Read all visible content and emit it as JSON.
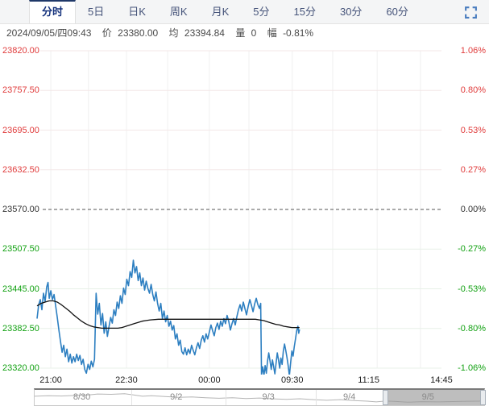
{
  "colors": {
    "up_red": "#e03c3c",
    "down_green": "#12a112",
    "neutral": "#333333",
    "price_line": "#2d7fc1",
    "avg_line": "#111111",
    "grid_red_zone": "#f3e7e7",
    "grid_green_zone": "#e8f1e8",
    "grid_vertical": "#f0f0f0",
    "baseline_dash": "#555555",
    "tab_accent": "#1f3868",
    "fullscreen_icon": "#4a7dbf",
    "nav_spark": "#b5b5b5"
  },
  "tabs": {
    "items": [
      {
        "name": "tab-minute",
        "label": "分时",
        "selected": true
      },
      {
        "name": "tab-5day",
        "label": "5日",
        "selected": false
      },
      {
        "name": "tab-daily-k",
        "label": "日K",
        "selected": false
      },
      {
        "name": "tab-weekly-k",
        "label": "周K",
        "selected": false
      },
      {
        "name": "tab-monthly-k",
        "label": "月K",
        "selected": false
      },
      {
        "name": "tab-5min",
        "label": "5分",
        "selected": false
      },
      {
        "name": "tab-15min",
        "label": "15分",
        "selected": false
      },
      {
        "name": "tab-30min",
        "label": "30分",
        "selected": false
      },
      {
        "name": "tab-60min",
        "label": "60分",
        "selected": false
      }
    ]
  },
  "info_bar": {
    "datetime": "2024/09/05/四09:43",
    "price_label": "价",
    "price": "23380.00",
    "avg_label": "均",
    "avg": "23394.84",
    "volume_label": "量",
    "volume": "0",
    "change_label": "幅",
    "change": "-0.81%"
  },
  "chart_data": {
    "type": "line",
    "ylim": [
      23320,
      23820
    ],
    "baseline": 23570,
    "y_ticks_price": [
      "23820.00",
      "23757.50",
      "23695.00",
      "23632.50",
      "23570.00",
      "23507.50",
      "23445.00",
      "23382.50",
      "23320.00"
    ],
    "y_ticks_percent": [
      "1.06%",
      "0.80%",
      "0.53%",
      "0.27%",
      "0.00%",
      "-0.27%",
      "-0.53%",
      "-0.80%",
      "-1.06%"
    ],
    "x_ticks": [
      {
        "label": "21:00",
        "f": 0.034
      },
      {
        "label": "22:30",
        "f": 0.221
      },
      {
        "label": "00:00",
        "f": 0.426
      },
      {
        "label": "09:30",
        "f": 0.631
      },
      {
        "label": "11:15",
        "f": 0.82
      },
      {
        "label": "14:45",
        "f": 1.0
      }
    ],
    "grid_v_f": [
      0.034,
      0.127,
      0.221,
      0.323,
      0.426,
      0.524,
      0.631,
      0.731,
      0.841,
      0.948
    ],
    "legend_position": "none",
    "grid": true,
    "series": [
      {
        "name": "price",
        "color_key": "price_line",
        "width": 1.6,
        "points": [
          [
            0.0,
            23398
          ],
          [
            0.004,
            23420
          ],
          [
            0.008,
            23428
          ],
          [
            0.012,
            23412
          ],
          [
            0.016,
            23438
          ],
          [
            0.02,
            23425
          ],
          [
            0.024,
            23448
          ],
          [
            0.027,
            23455
          ],
          [
            0.03,
            23430
          ],
          [
            0.034,
            23442
          ],
          [
            0.038,
            23428
          ],
          [
            0.042,
            23436
          ],
          [
            0.046,
            23418
          ],
          [
            0.05,
            23400
          ],
          [
            0.054,
            23380
          ],
          [
            0.058,
            23362
          ],
          [
            0.062,
            23345
          ],
          [
            0.066,
            23356
          ],
          [
            0.07,
            23338
          ],
          [
            0.074,
            23350
          ],
          [
            0.078,
            23330
          ],
          [
            0.082,
            23342
          ],
          [
            0.086,
            23328
          ],
          [
            0.09,
            23338
          ],
          [
            0.094,
            23330
          ],
          [
            0.098,
            23342
          ],
          [
            0.102,
            23332
          ],
          [
            0.106,
            23340
          ],
          [
            0.11,
            23326
          ],
          [
            0.114,
            23334
          ],
          [
            0.118,
            23318
          ],
          [
            0.122,
            23312
          ],
          [
            0.126,
            23326
          ],
          [
            0.13,
            23318
          ],
          [
            0.134,
            23331
          ],
          [
            0.138,
            23322
          ],
          [
            0.142,
            23334
          ],
          [
            0.146,
            23438
          ],
          [
            0.15,
            23405
          ],
          [
            0.154,
            23422
          ],
          [
            0.158,
            23388
          ],
          [
            0.162,
            23406
          ],
          [
            0.166,
            23375
          ],
          [
            0.17,
            23393
          ],
          [
            0.174,
            23370
          ],
          [
            0.178,
            23386
          ],
          [
            0.182,
            23400
          ],
          [
            0.186,
            23391
          ],
          [
            0.19,
            23412
          ],
          [
            0.194,
            23403
          ],
          [
            0.198,
            23424
          ],
          [
            0.202,
            23414
          ],
          [
            0.206,
            23434
          ],
          [
            0.21,
            23422
          ],
          [
            0.214,
            23446
          ],
          [
            0.218,
            23436
          ],
          [
            0.222,
            23460
          ],
          [
            0.226,
            23450
          ],
          [
            0.23,
            23472
          ],
          [
            0.234,
            23463
          ],
          [
            0.238,
            23490
          ],
          [
            0.242,
            23470
          ],
          [
            0.246,
            23480
          ],
          [
            0.25,
            23458
          ],
          [
            0.254,
            23470
          ],
          [
            0.258,
            23450
          ],
          [
            0.262,
            23462
          ],
          [
            0.266,
            23443
          ],
          [
            0.27,
            23457
          ],
          [
            0.274,
            23446
          ],
          [
            0.278,
            23438
          ],
          [
            0.282,
            23452
          ],
          [
            0.286,
            23436
          ],
          [
            0.29,
            23426
          ],
          [
            0.294,
            23440
          ],
          [
            0.298,
            23422
          ],
          [
            0.302,
            23410
          ],
          [
            0.306,
            23422
          ],
          [
            0.31,
            23398
          ],
          [
            0.314,
            23410
          ],
          [
            0.318,
            23393
          ],
          [
            0.322,
            23403
          ],
          [
            0.326,
            23386
          ],
          [
            0.33,
            23394
          ],
          [
            0.334,
            23380
          ],
          [
            0.338,
            23387
          ],
          [
            0.342,
            23366
          ],
          [
            0.346,
            23374
          ],
          [
            0.35,
            23356
          ],
          [
            0.354,
            23364
          ],
          [
            0.358,
            23346
          ],
          [
            0.362,
            23342
          ],
          [
            0.366,
            23352
          ],
          [
            0.37,
            23341
          ],
          [
            0.374,
            23350
          ],
          [
            0.378,
            23343
          ],
          [
            0.382,
            23356
          ],
          [
            0.386,
            23348
          ],
          [
            0.39,
            23341
          ],
          [
            0.394,
            23352
          ],
          [
            0.398,
            23360
          ],
          [
            0.402,
            23351
          ],
          [
            0.406,
            23364
          ],
          [
            0.41,
            23371
          ],
          [
            0.414,
            23361
          ],
          [
            0.418,
            23374
          ],
          [
            0.422,
            23366
          ],
          [
            0.426,
            23377
          ],
          [
            0.43,
            23388
          ],
          [
            0.434,
            23379
          ],
          [
            0.438,
            23371
          ],
          [
            0.442,
            23384
          ],
          [
            0.446,
            23391
          ],
          [
            0.45,
            23381
          ],
          [
            0.454,
            23394
          ],
          [
            0.458,
            23386
          ],
          [
            0.462,
            23398
          ],
          [
            0.466,
            23390
          ],
          [
            0.47,
            23403
          ],
          [
            0.474,
            23394
          ],
          [
            0.478,
            23380
          ],
          [
            0.482,
            23390
          ],
          [
            0.486,
            23398
          ],
          [
            0.49,
            23388
          ],
          [
            0.494,
            23401
          ],
          [
            0.498,
            23412
          ],
          [
            0.502,
            23420
          ],
          [
            0.506,
            23410
          ],
          [
            0.51,
            23424
          ],
          [
            0.514,
            23414
          ],
          [
            0.518,
            23404
          ],
          [
            0.522,
            23417
          ],
          [
            0.526,
            23428
          ],
          [
            0.53,
            23419
          ],
          [
            0.534,
            23409
          ],
          [
            0.538,
            23421
          ],
          [
            0.542,
            23430
          ],
          [
            0.546,
            23420
          ],
          [
            0.55,
            23414
          ],
          [
            0.553,
            23422
          ],
          [
            0.555,
            23310
          ],
          [
            0.558,
            23322
          ],
          [
            0.561,
            23308
          ],
          [
            0.564,
            23324
          ],
          [
            0.567,
            23312
          ],
          [
            0.57,
            23331
          ],
          [
            0.573,
            23344
          ],
          [
            0.576,
            23331
          ],
          [
            0.579,
            23318
          ],
          [
            0.582,
            23333
          ],
          [
            0.585,
            23322
          ],
          [
            0.588,
            23311
          ],
          [
            0.591,
            23328
          ],
          [
            0.594,
            23344
          ],
          [
            0.597,
            23333
          ],
          [
            0.6,
            23320
          ],
          [
            0.603,
            23336
          ],
          [
            0.606,
            23326
          ],
          [
            0.609,
            23347
          ],
          [
            0.612,
            23358
          ],
          [
            0.615,
            23348
          ],
          [
            0.618,
            23337
          ],
          [
            0.621,
            23324
          ],
          [
            0.624,
            23308
          ],
          [
            0.627,
            23329
          ],
          [
            0.63,
            23347
          ],
          [
            0.633,
            23339
          ],
          [
            0.636,
            23354
          ],
          [
            0.639,
            23366
          ],
          [
            0.642,
            23379
          ],
          [
            0.645,
            23386
          ],
          [
            0.647,
            23375
          ],
          [
            0.649,
            23381
          ]
        ]
      },
      {
        "name": "average",
        "color_key": "avg_line",
        "width": 1.3,
        "points": [
          [
            0.0,
            23418
          ],
          [
            0.01,
            23422
          ],
          [
            0.02,
            23424
          ],
          [
            0.03,
            23426
          ],
          [
            0.04,
            23426
          ],
          [
            0.05,
            23424
          ],
          [
            0.06,
            23420
          ],
          [
            0.07,
            23415
          ],
          [
            0.08,
            23410
          ],
          [
            0.09,
            23404
          ],
          [
            0.1,
            23399
          ],
          [
            0.11,
            23394
          ],
          [
            0.12,
            23390
          ],
          [
            0.13,
            23387
          ],
          [
            0.14,
            23385
          ],
          [
            0.15,
            23384
          ],
          [
            0.16,
            23383
          ],
          [
            0.18,
            23383
          ],
          [
            0.2,
            23383
          ],
          [
            0.21,
            23384
          ],
          [
            0.22,
            23386
          ],
          [
            0.23,
            23388
          ],
          [
            0.24,
            23390
          ],
          [
            0.25,
            23392
          ],
          [
            0.26,
            23394
          ],
          [
            0.27,
            23395
          ],
          [
            0.28,
            23396
          ],
          [
            0.3,
            23397
          ],
          [
            0.34,
            23397
          ],
          [
            0.38,
            23397
          ],
          [
            0.42,
            23397
          ],
          [
            0.46,
            23397
          ],
          [
            0.5,
            23397
          ],
          [
            0.54,
            23397
          ],
          [
            0.55,
            23396
          ],
          [
            0.56,
            23395
          ],
          [
            0.57,
            23393
          ],
          [
            0.58,
            23391
          ],
          [
            0.59,
            23389
          ],
          [
            0.6,
            23388
          ],
          [
            0.61,
            23386
          ],
          [
            0.62,
            23385
          ],
          [
            0.63,
            23384
          ],
          [
            0.649,
            23384
          ]
        ]
      }
    ]
  },
  "navigator": {
    "dates": [
      {
        "label": "8/30",
        "f": 0.105
      },
      {
        "label": "9/2",
        "f": 0.315
      },
      {
        "label": "9/3",
        "f": 0.52
      },
      {
        "label": "9/4",
        "f": 0.7
      },
      {
        "label": "9/5",
        "f": 0.875
      }
    ],
    "dividers_f": [
      0.215,
      0.425,
      0.625,
      0.78
    ],
    "selection": {
      "start_f": 0.78,
      "end_f": 1.0
    },
    "spark": [
      [
        0.0,
        0.42
      ],
      [
        0.03,
        0.38
      ],
      [
        0.06,
        0.4
      ],
      [
        0.09,
        0.35
      ],
      [
        0.12,
        0.3
      ],
      [
        0.14,
        0.22
      ],
      [
        0.17,
        0.25
      ],
      [
        0.2,
        0.2
      ],
      [
        0.22,
        0.3
      ],
      [
        0.24,
        0.42
      ],
      [
        0.26,
        0.38
      ],
      [
        0.29,
        0.45
      ],
      [
        0.32,
        0.52
      ],
      [
        0.35,
        0.48
      ],
      [
        0.38,
        0.55
      ],
      [
        0.41,
        0.6
      ],
      [
        0.44,
        0.56
      ],
      [
        0.47,
        0.62
      ],
      [
        0.5,
        0.58
      ],
      [
        0.53,
        0.65
      ],
      [
        0.56,
        0.7
      ],
      [
        0.59,
        0.64
      ],
      [
        0.62,
        0.72
      ],
      [
        0.65,
        0.78
      ],
      [
        0.68,
        0.72
      ],
      [
        0.71,
        0.8
      ],
      [
        0.74,
        0.86
      ],
      [
        0.76,
        0.92
      ],
      [
        0.78,
        0.85
      ],
      [
        0.8,
        0.88
      ],
      [
        0.83,
        0.95
      ],
      [
        0.86,
        0.9
      ],
      [
        0.9,
        0.92
      ],
      [
        0.95,
        0.88
      ],
      [
        1.0,
        0.85
      ]
    ]
  }
}
